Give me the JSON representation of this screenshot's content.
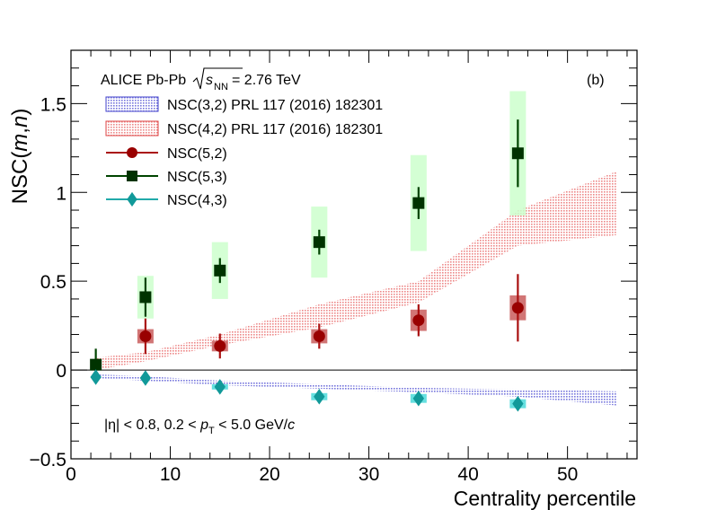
{
  "chart_data": {
    "type": "scatter",
    "panel_label": "(b)",
    "experiment": "ALICE Pb-Pb",
    "energy_symbol": "s",
    "energy_subscript": "NN",
    "energy_value": " = 2.76 TeV",
    "cut_text_a": "|η| < 0.8, 0.2 < ",
    "cut_pt": "p",
    "cut_pt_sub": "T",
    "cut_text_b": " < 5.0 GeV/",
    "cut_c": "c",
    "xlabel": "Centrality percentile",
    "ylabel_prefix": "NSC(",
    "ylabel_m": "m",
    "ylabel_comma": ",",
    "ylabel_n": "n",
    "ylabel_suffix": ")",
    "xlim": [
      0,
      57
    ],
    "ylim": [
      -0.5,
      1.8
    ],
    "x_ticks": [
      0,
      10,
      20,
      30,
      40,
      50
    ],
    "x_tick_labels": [
      "0",
      "10",
      "20",
      "30",
      "40",
      "50"
    ],
    "y_ticks": [
      -0.5,
      0,
      0.5,
      1,
      1.5
    ],
    "y_tick_labels": [
      "−0.5",
      "0",
      "0.5",
      "1",
      "1.5"
    ],
    "bands": [
      {
        "name": "NSC(3,2) PRL 117 (2016) 182301",
        "color": "#4444cc",
        "fill": "#b8b8ee",
        "x": [
          2.5,
          7.5,
          15,
          25,
          35,
          45,
          55
        ],
        "low": [
          -0.045,
          -0.06,
          -0.085,
          -0.105,
          -0.125,
          -0.15,
          -0.2
        ],
        "high": [
          -0.025,
          -0.035,
          -0.06,
          -0.08,
          -0.1,
          -0.11,
          -0.12
        ]
      },
      {
        "name": "NSC(4,2) PRL 117 (2016) 182301",
        "color": "#dd4444",
        "fill": "#f6c4c4",
        "x": [
          2.5,
          7.5,
          15,
          25,
          35,
          45,
          55
        ],
        "low": [
          0.0,
          0.05,
          0.14,
          0.24,
          0.38,
          0.7,
          0.76
        ],
        "high": [
          0.07,
          0.1,
          0.2,
          0.37,
          0.5,
          0.9,
          1.12
        ]
      }
    ],
    "series": [
      {
        "name": "NSC(5,2)",
        "marker": "circle",
        "color": "#990000",
        "line_color": "#aa1111",
        "sys_fill": "#cc6666",
        "x": [
          7.5,
          15,
          25,
          35,
          45
        ],
        "y": [
          0.19,
          0.135,
          0.19,
          0.28,
          0.35
        ],
        "stat_err": [
          0.1,
          0.07,
          0.07,
          0.09,
          0.19
        ],
        "sys_err": [
          0.04,
          0.03,
          0.04,
          0.06,
          0.07
        ]
      },
      {
        "name": "NSC(5,3)",
        "marker": "square",
        "color": "#003300",
        "line_color": "#004400",
        "sys_fill": "#ccffcc",
        "x": [
          2.5,
          7.5,
          15,
          25,
          35,
          45
        ],
        "y": [
          0.03,
          0.41,
          0.56,
          0.72,
          0.94,
          1.22
        ],
        "stat_err": [
          0.09,
          0.11,
          0.07,
          0.07,
          0.09,
          0.19
        ],
        "sys_err": [
          0.0,
          0.12,
          0.16,
          0.2,
          0.27,
          0.35
        ]
      },
      {
        "name": "NSC(4,3)",
        "marker": "diamond",
        "color": "#119999",
        "line_color": "#22aaaa",
        "sys_fill": "#55dddd",
        "x": [
          2.5,
          7.5,
          15,
          25,
          35,
          45
        ],
        "y": [
          -0.04,
          -0.045,
          -0.095,
          -0.15,
          -0.16,
          -0.19
        ],
        "stat_err": [
          0.01,
          0.01,
          0.012,
          0.02,
          0.02,
          0.025
        ],
        "sys_err": [
          0.0,
          0.0,
          0.015,
          0.02,
          0.025,
          0.025
        ]
      }
    ]
  }
}
